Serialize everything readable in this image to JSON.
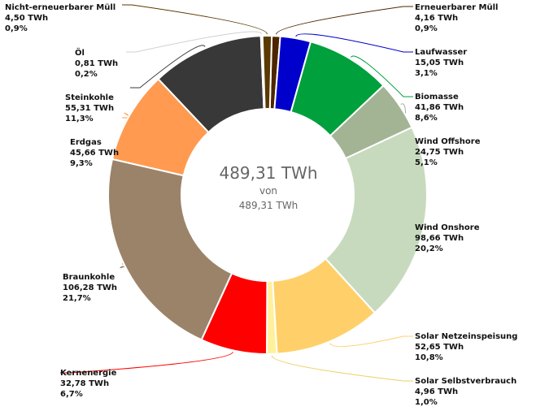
{
  "chart_data": {
    "type": "pie",
    "variant": "donut",
    "center": {
      "total": "489,31 TWh",
      "connector": "von",
      "reference": "489,31 TWh"
    },
    "unit": "TWh",
    "slices": [
      {
        "name": "Erneuerbarer Müll",
        "value": 4.16,
        "value_label": "4,16 TWh",
        "percent_label": "0,9%",
        "color": "#4d2600"
      },
      {
        "name": "Laufwasser",
        "value": 15.05,
        "value_label": "15,05 TWh",
        "percent_label": "3,1%",
        "color": "#0000cc"
      },
      {
        "name": "Biomasse",
        "value": 41.86,
        "value_label": "41,86 TWh",
        "percent_label": "8,6%",
        "color": "#00a03c"
      },
      {
        "name": "Wind Offshore",
        "value": 24.75,
        "value_label": "24,75 TWh",
        "percent_label": "5,1%",
        "color": "#a3b494"
      },
      {
        "name": "Wind Onshore",
        "value": 98.66,
        "value_label": "98,66 TWh",
        "percent_label": "20,2%",
        "color": "#c7dabe"
      },
      {
        "name": "Solar Netzeinspeisung",
        "value": 52.65,
        "value_label": "52,65 TWh",
        "percent_label": "10,8%",
        "color": "#ffd06a"
      },
      {
        "name": "Solar Selbstverbrauch",
        "value": 4.96,
        "value_label": "4,96 TWh",
        "percent_label": "1,0%",
        "color": "#fff19c"
      },
      {
        "name": "Kernenergie",
        "value": 32.78,
        "value_label": "32,78 TWh",
        "percent_label": "6,7%",
        "color": "#ff0000"
      },
      {
        "name": "Braunkohle",
        "value": 106.28,
        "value_label": "106,28 TWh",
        "percent_label": "21,7%",
        "color": "#9b836a"
      },
      {
        "name": "Erdgas",
        "value": 45.66,
        "value_label": "45,66 TWh",
        "percent_label": "9,3%",
        "color": "#ff9a50"
      },
      {
        "name": "Steinkohle",
        "value": 55.31,
        "value_label": "55,31 TWh",
        "percent_label": "11,3%",
        "color": "#383838"
      },
      {
        "name": "Öl",
        "value": 0.81,
        "value_label": "0,81 TWh",
        "percent_label": "0,2%",
        "color": "#d0d0d0"
      },
      {
        "name": "Nicht-erneuerbarer Müll",
        "value": 4.5,
        "value_label": "4,50 TWh",
        "percent_label": "0,9%",
        "color": "#5a3a00"
      }
    ]
  }
}
